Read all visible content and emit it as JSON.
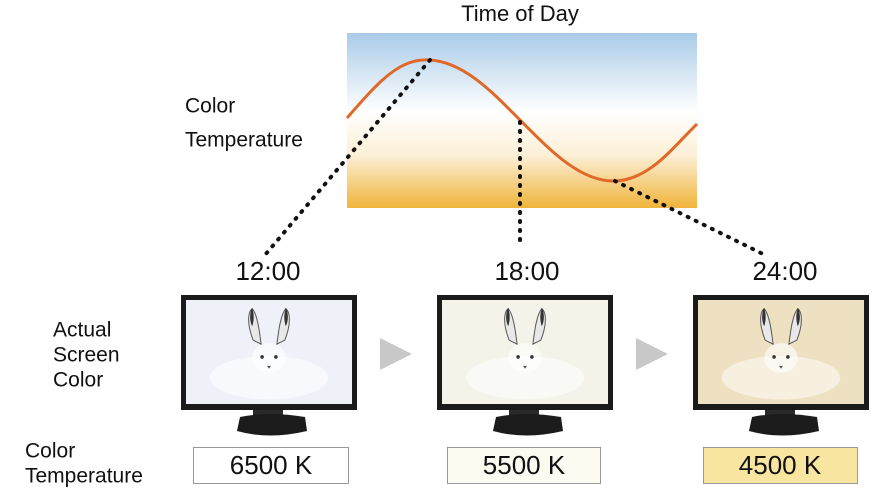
{
  "title": "Time of Day",
  "curve_label": [
    "Color",
    "Temperature"
  ],
  "row_labels": {
    "screen": [
      "Actual",
      "Screen",
      "Color"
    ],
    "temperature": [
      "Color",
      "Temperature"
    ]
  },
  "panels": [
    {
      "time": "12:00",
      "temperature": "6500 K"
    },
    {
      "time": "18:00",
      "temperature": "5500 K"
    },
    {
      "time": "24:00",
      "temperature": "4500 K"
    }
  ]
}
